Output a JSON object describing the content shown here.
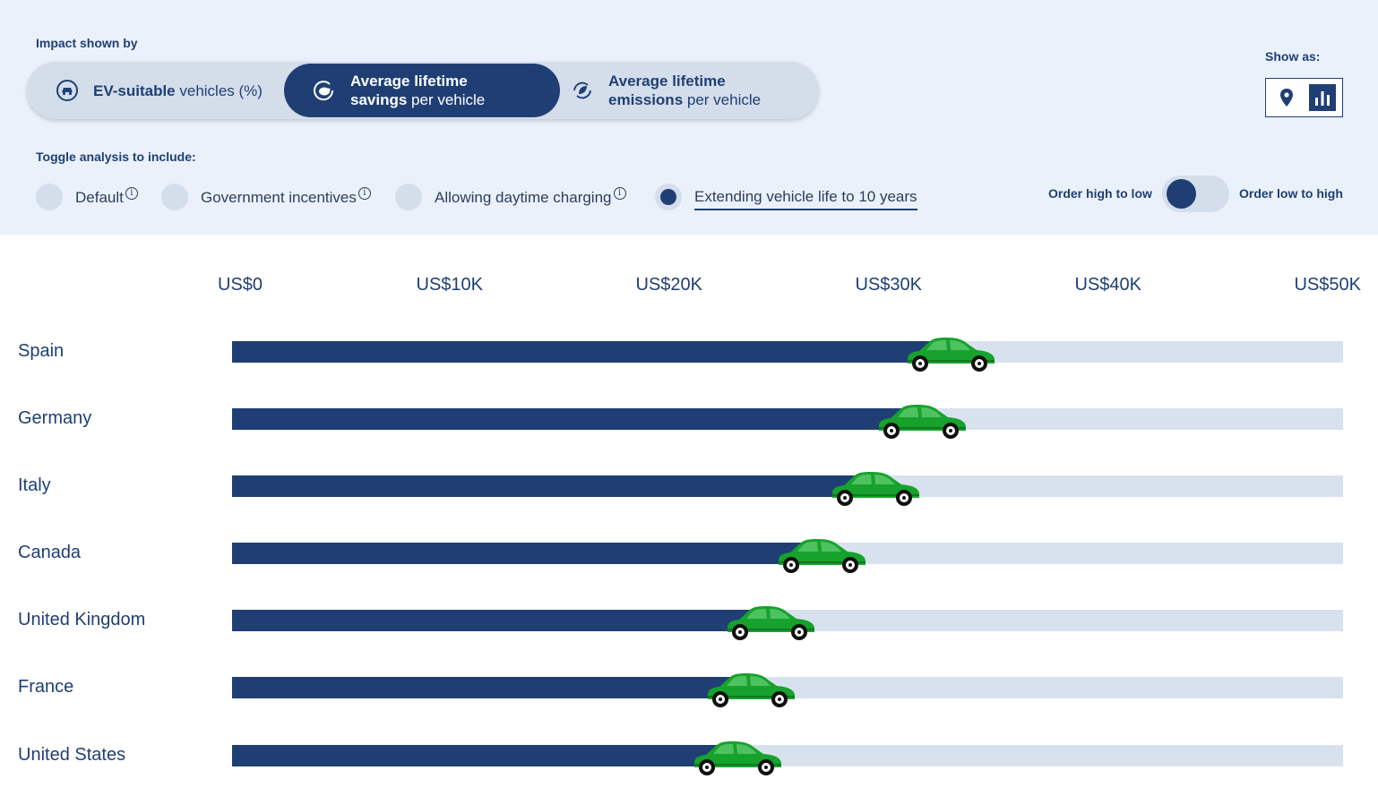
{
  "controls": {
    "impact_label": "Impact shown by",
    "segments": [
      {
        "bold": "EV-suitable",
        "rest": " vehicles (%)",
        "icon": "car-icon"
      },
      {
        "bold": "Average lifetime savings",
        "rest": " per vehicle",
        "icon": "piggy-bank-icon"
      },
      {
        "bold": "Average lifetime emissions",
        "rest": " per vehicle",
        "icon": "leaf-cycle-icon"
      }
    ],
    "active_segment": "Average lifetime savings",
    "show_as_label": "Show as:",
    "show_as_options": [
      "map-pin-icon",
      "bar-chart-icon"
    ],
    "toggle_label": "Toggle analysis to include:",
    "toggles": [
      {
        "label": "Default",
        "info": "i",
        "selected": false
      },
      {
        "label": "Government incentives",
        "info": "i",
        "selected": false
      },
      {
        "label": "Allowing daytime charging",
        "info": "i",
        "selected": false
      },
      {
        "label": "Extending vehicle life to 10 years",
        "info": "",
        "selected": true
      }
    ],
    "order_high_low": "Order high to low",
    "order_low_high": "Order low to high"
  },
  "colors": {
    "bar_fill": "#1f3f74",
    "bar_track": "#d8e2ee",
    "car": "#16a22c",
    "panel": "#ebf1fa"
  },
  "chart_data": {
    "type": "bar",
    "orientation": "horizontal",
    "xlim": [
      0,
      50000
    ],
    "tick_labels": [
      "US$0",
      "US$10K",
      "US$20K",
      "US$30K",
      "US$40K",
      "US$50K"
    ],
    "categories": [
      "Spain",
      "Germany",
      "Italy",
      "Canada",
      "United Kingdom",
      "France",
      "United States"
    ],
    "values": [
      31500,
      30200,
      28100,
      25700,
      23400,
      22500,
      21900
    ]
  }
}
